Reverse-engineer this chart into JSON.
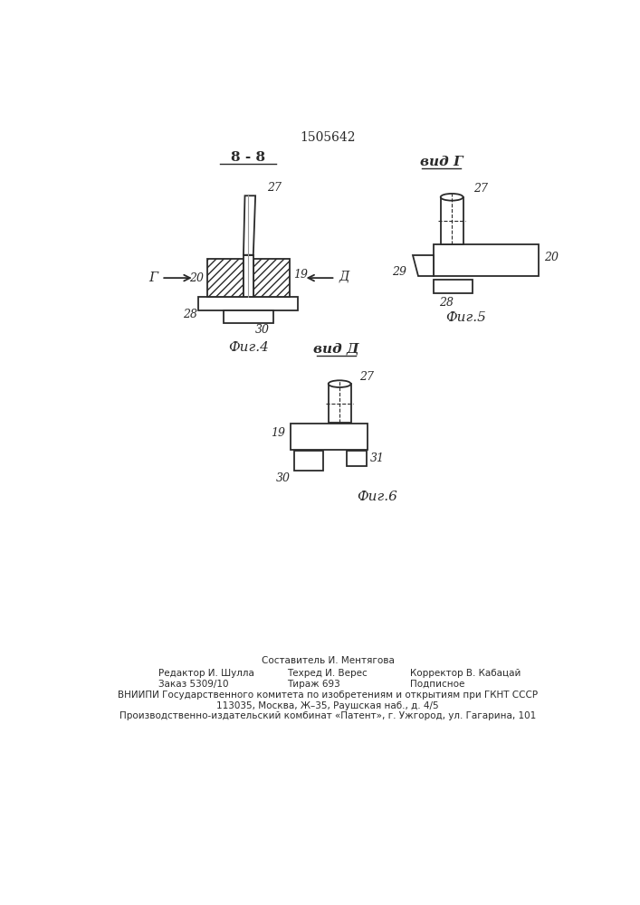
{
  "patent_number": "1505642",
  "background_color": "#ffffff",
  "line_color": "#2a2a2a",
  "fig4_title": "8 - 8",
  "fig5_title": "вид Г",
  "fig6_title": "вид Д",
  "fig4_label": "Фиг.4",
  "fig5_label": "Фиг.5",
  "fig6_label": "Фиг.6",
  "footer_col1": [
    "Редактор И. Шулла",
    "Заказ 5309/10"
  ],
  "footer_col2": [
    "Составитель И. Ментягова",
    "Техред И. Верес",
    "Тираж 693"
  ],
  "footer_col3": [
    "Корректор В. Кабацай",
    "Подписное"
  ],
  "footer_line1": "ВНИИПИ Государственного комитета по изобретениям и открытиям при ГКНТ СССР",
  "footer_line2": "113035, Москва, Ж–35, Раушская наб., д. 4/5",
  "footer_line3": "Производственно-издательский комбинат «Патент», г. Ужгород, ул. Гагарина, 101"
}
